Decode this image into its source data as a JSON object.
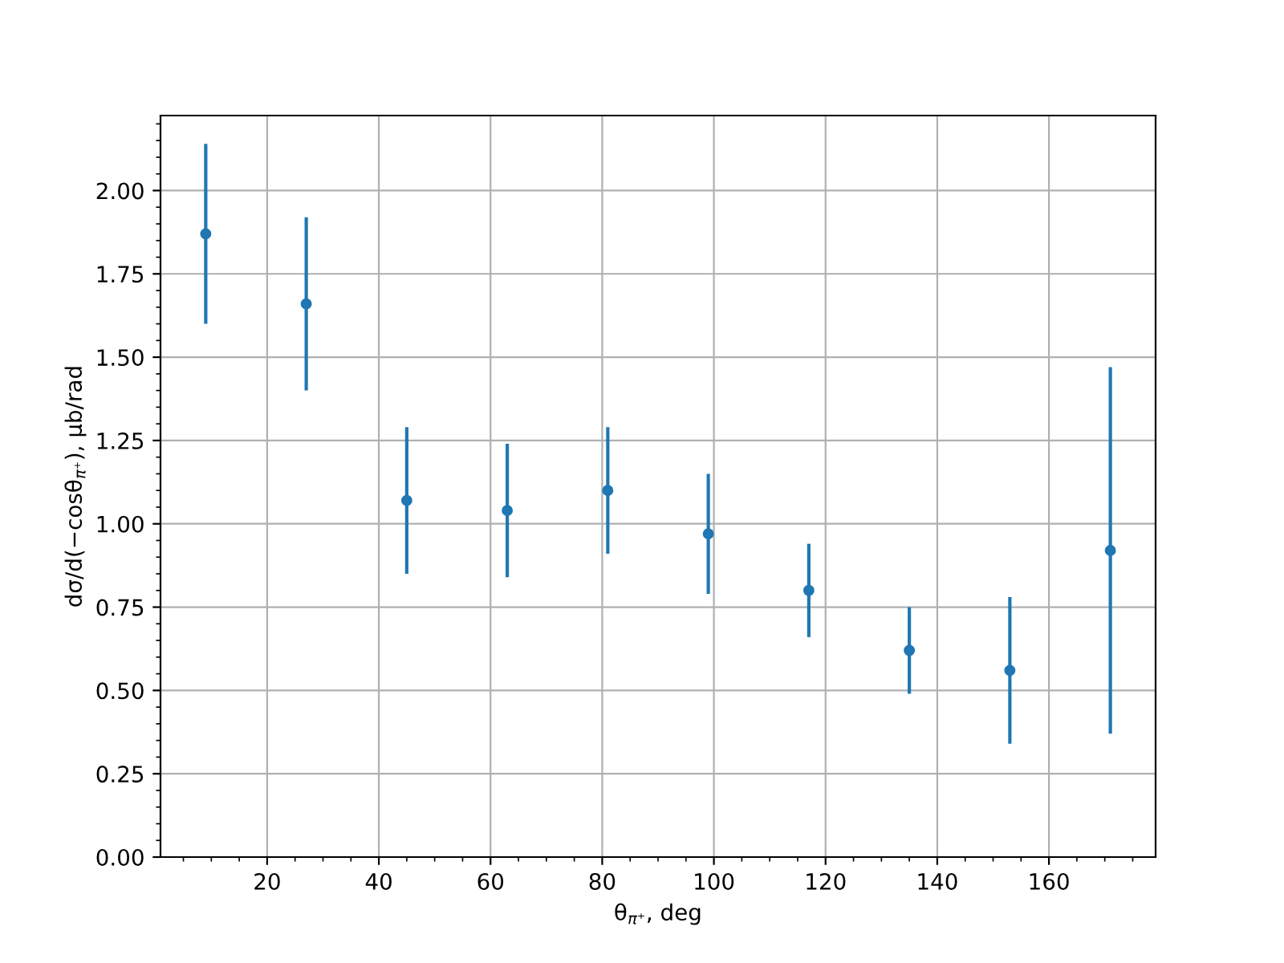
{
  "chart_data": {
    "type": "scatter",
    "xlabel": "θ$_{π⁺}$, deg",
    "ylabel": "dσ/d(−cosθ$_{π⁺}$), μb/rad",
    "x": [
      9,
      27,
      45,
      63,
      81,
      99,
      117,
      135,
      153,
      171
    ],
    "series": [
      {
        "color": "#1f77b4",
        "values": [
          1.87,
          1.66,
          1.07,
          1.04,
          1.1,
          0.97,
          0.8,
          0.62,
          0.56,
          0.92
        ],
        "errors": [
          0.27,
          0.26,
          0.22,
          0.2,
          0.19,
          0.18,
          0.14,
          0.13,
          0.22,
          0.55
        ]
      }
    ],
    "xlim": [
      0.9,
      179.1
    ],
    "ylim": [
      0,
      2.225
    ],
    "xticks": [
      20,
      40,
      60,
      80,
      100,
      120,
      140,
      160
    ],
    "yticks": [
      {
        "value": 0,
        "label": "0.00"
      },
      {
        "value": 0.25,
        "label": "0.25"
      },
      {
        "value": 0.5,
        "label": "0.50"
      },
      {
        "value": 0.75,
        "label": "0.75"
      },
      {
        "value": 1,
        "label": "1.00"
      },
      {
        "value": 1.25,
        "label": "1.25"
      },
      {
        "value": 1.5,
        "label": "1.50"
      },
      {
        "value": 1.75,
        "label": "1.75"
      },
      {
        "value": 2,
        "label": "2.00"
      }
    ],
    "grid": true,
    "marker": "circle"
  }
}
